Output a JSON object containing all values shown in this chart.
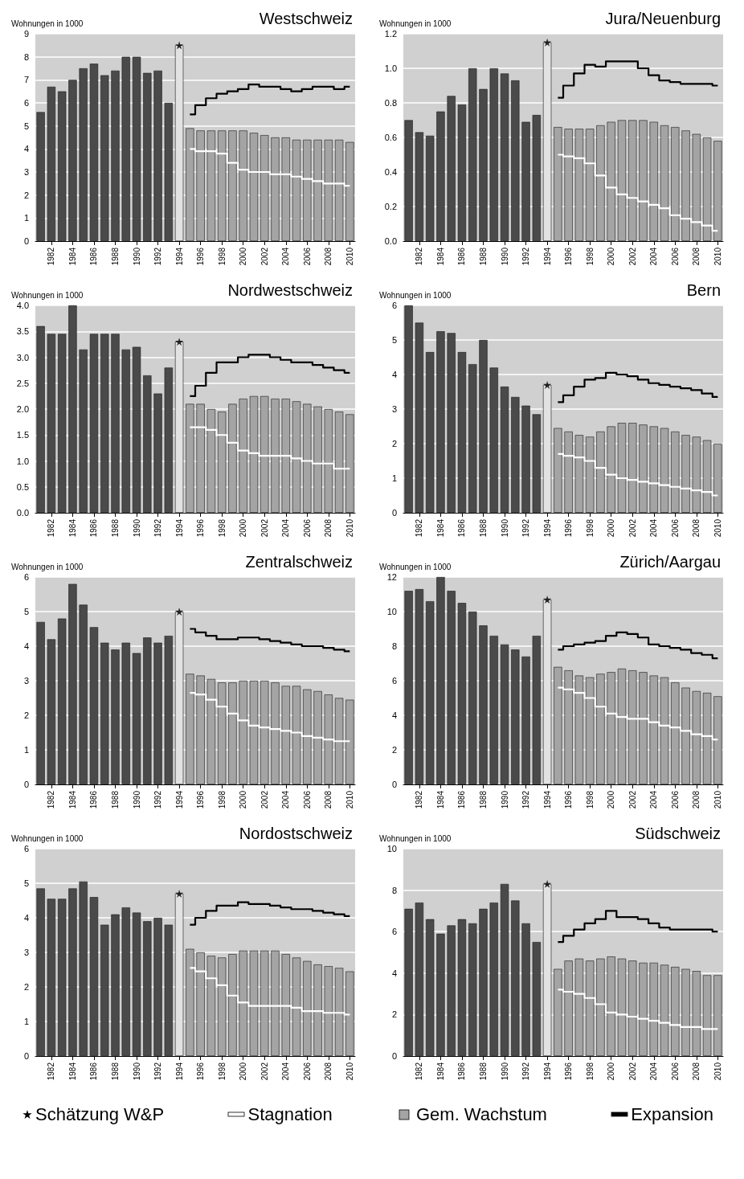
{
  "chart_data": [
    {
      "type": "bar",
      "title": "Westschweiz",
      "ylabel": "Wohnungen in 1000",
      "xlim": [
        1980.5,
        2010.5
      ],
      "xticks": [
        1982,
        1984,
        1986,
        1988,
        1990,
        1992,
        1994,
        1996,
        1998,
        2000,
        2002,
        2004,
        2006,
        2008,
        2010
      ],
      "ylim": [
        0,
        9
      ],
      "yticks": [
        0,
        1,
        2,
        3,
        4,
        5,
        6,
        7,
        8,
        9
      ],
      "grid": "y",
      "legend": "bottom",
      "series": [
        {
          "colors": [
            "#4a4a4a",
            "#4a4a4a",
            "#4a4a4a",
            "#4a4a4a",
            "#4a4a4a",
            "#4a4a4a",
            "#4a4a4a",
            "#4a4a4a",
            "#4a4a4a",
            "#4a4a4a",
            "#4a4a4a",
            "#4a4a4a",
            "#4a4a4a",
            "#e2e2e2"
          ],
          "x": [
            1981,
            1982,
            1983,
            1984,
            1985,
            1986,
            1987,
            1988,
            1989,
            1990,
            1991,
            1992,
            1993,
            1994
          ],
          "values": [
            5.6,
            6.7,
            6.5,
            7.0,
            7.5,
            7.7,
            7.2,
            7.4,
            8.0,
            8.0,
            7.3,
            7.4,
            6.0,
            8.5
          ]
        },
        {
          "type": "scatter",
          "name": "Schätzung W&P",
          "color": "#000000",
          "marker": "star",
          "x": [
            1994
          ],
          "values": [
            8.5
          ]
        },
        {
          "type": "step",
          "name": "Stagnation",
          "color": "#ffffff",
          "x": [
            1995,
            1996,
            1997,
            1998,
            1999,
            2000,
            2001,
            2002,
            2003,
            2004,
            2005,
            2006,
            2007,
            2008,
            2009,
            2010
          ],
          "values": [
            4.0,
            3.9,
            3.9,
            3.8,
            3.4,
            3.1,
            3.0,
            3.0,
            2.9,
            2.9,
            2.8,
            2.7,
            2.6,
            2.5,
            2.5,
            2.4
          ]
        },
        {
          "name": "Gem. Wachstum",
          "color": "#a4a4a4",
          "x": [
            1995,
            1996,
            1997,
            1998,
            1999,
            2000,
            2001,
            2002,
            2003,
            2004,
            2005,
            2006,
            2007,
            2008,
            2009,
            2010
          ],
          "values": [
            4.9,
            4.8,
            4.8,
            4.8,
            4.8,
            4.8,
            4.7,
            4.6,
            4.5,
            4.5,
            4.4,
            4.4,
            4.4,
            4.4,
            4.4,
            4.3
          ]
        },
        {
          "type": "step",
          "name": "Expansion",
          "color": "#000000",
          "x": [
            1995,
            1996,
            1997,
            1998,
            1999,
            2000,
            2001,
            2002,
            2003,
            2004,
            2005,
            2006,
            2007,
            2008,
            2009,
            2010
          ],
          "values": [
            5.5,
            5.9,
            6.2,
            6.4,
            6.5,
            6.6,
            6.8,
            6.7,
            6.7,
            6.6,
            6.5,
            6.6,
            6.7,
            6.7,
            6.6,
            6.7
          ]
        }
      ]
    },
    {
      "type": "bar",
      "title": "Jura/Neuenburg",
      "ylabel": "Wohnungen in 1000",
      "xlim": [
        1980.5,
        2010.5
      ],
      "xticks": [
        1982,
        1984,
        1986,
        1988,
        1990,
        1992,
        1994,
        1996,
        1998,
        2000,
        2002,
        2004,
        2006,
        2008,
        2010
      ],
      "ylim": [
        0,
        1.2
      ],
      "yticks": [
        {
          "value": 0,
          "label": "0.0"
        },
        {
          "value": 0.2,
          "label": "0.2"
        },
        {
          "value": 0.4,
          "label": "0.4"
        },
        {
          "value": 0.6,
          "label": "0.6"
        },
        {
          "value": 0.8,
          "label": "0.8"
        },
        {
          "value": 1,
          "label": "1.0"
        },
        {
          "value": 1.2,
          "label": "1.2"
        }
      ],
      "grid": "y",
      "legend": "bottom",
      "series": [
        {
          "colors": [
            "#4a4a4a",
            "#4a4a4a",
            "#4a4a4a",
            "#4a4a4a",
            "#4a4a4a",
            "#4a4a4a",
            "#4a4a4a",
            "#4a4a4a",
            "#4a4a4a",
            "#4a4a4a",
            "#4a4a4a",
            "#4a4a4a",
            "#4a4a4a",
            "#e2e2e2"
          ],
          "x": [
            1981,
            1982,
            1983,
            1984,
            1985,
            1986,
            1987,
            1988,
            1989,
            1990,
            1991,
            1992,
            1993,
            1994
          ],
          "values": [
            0.7,
            0.63,
            0.61,
            0.75,
            0.84,
            0.79,
            1.0,
            0.88,
            1.0,
            0.97,
            0.93,
            0.69,
            0.73,
            1.15
          ]
        },
        {
          "type": "scatter",
          "name": "Schätzung W&P",
          "color": "#000000",
          "marker": "star",
          "x": [
            1994
          ],
          "values": [
            1.15
          ]
        },
        {
          "type": "step",
          "name": "Stagnation",
          "color": "#ffffff",
          "x": [
            1995,
            1996,
            1997,
            1998,
            1999,
            2000,
            2001,
            2002,
            2003,
            2004,
            2005,
            2006,
            2007,
            2008,
            2009,
            2010
          ],
          "values": [
            0.5,
            0.49,
            0.48,
            0.45,
            0.38,
            0.31,
            0.27,
            0.25,
            0.23,
            0.21,
            0.19,
            0.15,
            0.13,
            0.11,
            0.09,
            0.06
          ]
        },
        {
          "name": "Gem. Wachstum",
          "color": "#a4a4a4",
          "x": [
            1995,
            1996,
            1997,
            1998,
            1999,
            2000,
            2001,
            2002,
            2003,
            2004,
            2005,
            2006,
            2007,
            2008,
            2009,
            2010
          ],
          "values": [
            0.66,
            0.65,
            0.65,
            0.65,
            0.67,
            0.69,
            0.7,
            0.7,
            0.7,
            0.69,
            0.67,
            0.66,
            0.64,
            0.62,
            0.6,
            0.58
          ]
        },
        {
          "type": "step",
          "name": "Expansion",
          "color": "#000000",
          "x": [
            1995,
            1996,
            1997,
            1998,
            1999,
            2000,
            2001,
            2002,
            2003,
            2004,
            2005,
            2006,
            2007,
            2008,
            2009,
            2010
          ],
          "values": [
            0.83,
            0.9,
            0.97,
            1.02,
            1.01,
            1.04,
            1.04,
            1.04,
            1.0,
            0.96,
            0.93,
            0.92,
            0.91,
            0.91,
            0.91,
            0.9
          ]
        }
      ]
    },
    {
      "type": "bar",
      "title": "Nordwestschweiz",
      "ylabel": "Wohnungen in 1000",
      "xlim": [
        1980.5,
        2010.5
      ],
      "xticks": [
        1982,
        1984,
        1986,
        1988,
        1990,
        1992,
        1994,
        1996,
        1998,
        2000,
        2002,
        2004,
        2006,
        2008,
        2010
      ],
      "ylim": [
        0,
        4
      ],
      "yticks": [
        {
          "value": 0,
          "label": "0.0"
        },
        {
          "value": 0.5,
          "label": "0.5"
        },
        {
          "value": 1,
          "label": "1.0"
        },
        {
          "value": 1.5,
          "label": "1.5"
        },
        {
          "value": 2,
          "label": "2.0"
        },
        {
          "value": 2.5,
          "label": "2.5"
        },
        {
          "value": 3,
          "label": "3.0"
        },
        {
          "value": 3.5,
          "label": "3.5"
        },
        {
          "value": 4,
          "label": "4.0"
        }
      ],
      "grid": "y",
      "legend": "bottom",
      "series": [
        {
          "colors": [
            "#4a4a4a",
            "#4a4a4a",
            "#4a4a4a",
            "#4a4a4a",
            "#4a4a4a",
            "#4a4a4a",
            "#4a4a4a",
            "#4a4a4a",
            "#4a4a4a",
            "#4a4a4a",
            "#4a4a4a",
            "#4a4a4a",
            "#4a4a4a",
            "#e2e2e2"
          ],
          "x": [
            1981,
            1982,
            1983,
            1984,
            1985,
            1986,
            1987,
            1988,
            1989,
            1990,
            1991,
            1992,
            1993,
            1994
          ],
          "values": [
            3.6,
            3.45,
            3.45,
            4.0,
            3.15,
            3.45,
            3.45,
            3.45,
            3.15,
            3.2,
            2.65,
            2.3,
            2.8,
            3.3
          ]
        },
        {
          "type": "scatter",
          "name": "Schätzung W&P",
          "color": "#000000",
          "marker": "star",
          "x": [
            1994
          ],
          "values": [
            3.3
          ]
        },
        {
          "type": "step",
          "name": "Stagnation",
          "color": "#ffffff",
          "x": [
            1995,
            1996,
            1997,
            1998,
            1999,
            2000,
            2001,
            2002,
            2003,
            2004,
            2005,
            2006,
            2007,
            2008,
            2009,
            2010
          ],
          "values": [
            1.65,
            1.65,
            1.6,
            1.5,
            1.35,
            1.2,
            1.15,
            1.1,
            1.1,
            1.1,
            1.05,
            1.0,
            0.95,
            0.95,
            0.85,
            0.85
          ]
        },
        {
          "name": "Gem. Wachstum",
          "color": "#a4a4a4",
          "x": [
            1995,
            1996,
            1997,
            1998,
            1999,
            2000,
            2001,
            2002,
            2003,
            2004,
            2005,
            2006,
            2007,
            2008,
            2009,
            2010
          ],
          "values": [
            2.1,
            2.1,
            2.0,
            1.95,
            2.1,
            2.2,
            2.25,
            2.25,
            2.2,
            2.2,
            2.15,
            2.1,
            2.05,
            2.0,
            1.95,
            1.9
          ]
        },
        {
          "type": "step",
          "name": "Expansion",
          "color": "#000000",
          "x": [
            1995,
            1996,
            1997,
            1998,
            1999,
            2000,
            2001,
            2002,
            2003,
            2004,
            2005,
            2006,
            2007,
            2008,
            2009,
            2010
          ],
          "values": [
            2.25,
            2.45,
            2.7,
            2.9,
            2.9,
            3.0,
            3.05,
            3.05,
            3.0,
            2.95,
            2.9,
            2.9,
            2.85,
            2.8,
            2.75,
            2.7
          ]
        }
      ]
    },
    {
      "type": "bar",
      "title": "Bern",
      "ylabel": "Wohnungen in 1000",
      "xlim": [
        1980.5,
        2010.5
      ],
      "xticks": [
        1982,
        1984,
        1986,
        1988,
        1990,
        1992,
        1994,
        1996,
        1998,
        2000,
        2002,
        2004,
        2006,
        2008,
        2010
      ],
      "ylim": [
        0,
        6
      ],
      "yticks": [
        0,
        1,
        2,
        3,
        4,
        5,
        6
      ],
      "grid": "y",
      "legend": "bottom",
      "series": [
        {
          "colors": [
            "#4a4a4a",
            "#4a4a4a",
            "#4a4a4a",
            "#4a4a4a",
            "#4a4a4a",
            "#4a4a4a",
            "#4a4a4a",
            "#4a4a4a",
            "#4a4a4a",
            "#4a4a4a",
            "#4a4a4a",
            "#4a4a4a",
            "#4a4a4a",
            "#e2e2e2"
          ],
          "x": [
            1981,
            1982,
            1983,
            1984,
            1985,
            1986,
            1987,
            1988,
            1989,
            1990,
            1991,
            1992,
            1993,
            1994
          ],
          "values": [
            6.0,
            5.5,
            4.65,
            5.25,
            5.2,
            4.65,
            4.3,
            5.0,
            4.2,
            3.65,
            3.35,
            3.1,
            2.85,
            3.7
          ]
        },
        {
          "type": "scatter",
          "name": "Schätzung W&P",
          "color": "#000000",
          "marker": "star",
          "x": [
            1994
          ],
          "values": [
            3.7
          ]
        },
        {
          "type": "step",
          "name": "Stagnation",
          "color": "#ffffff",
          "x": [
            1995,
            1996,
            1997,
            1998,
            1999,
            2000,
            2001,
            2002,
            2003,
            2004,
            2005,
            2006,
            2007,
            2008,
            2009,
            2010
          ],
          "values": [
            1.7,
            1.65,
            1.6,
            1.5,
            1.3,
            1.1,
            1.0,
            0.95,
            0.9,
            0.85,
            0.8,
            0.75,
            0.7,
            0.65,
            0.6,
            0.5
          ]
        },
        {
          "name": "Gem. Wachstum",
          "color": "#a4a4a4",
          "x": [
            1995,
            1996,
            1997,
            1998,
            1999,
            2000,
            2001,
            2002,
            2003,
            2004,
            2005,
            2006,
            2007,
            2008,
            2009,
            2010
          ],
          "values": [
            2.45,
            2.35,
            2.25,
            2.2,
            2.35,
            2.5,
            2.6,
            2.6,
            2.55,
            2.5,
            2.45,
            2.35,
            2.25,
            2.2,
            2.1,
            2.0
          ]
        },
        {
          "type": "step",
          "name": "Expansion",
          "color": "#000000",
          "x": [
            1995,
            1996,
            1997,
            1998,
            1999,
            2000,
            2001,
            2002,
            2003,
            2004,
            2005,
            2006,
            2007,
            2008,
            2009,
            2010
          ],
          "values": [
            3.2,
            3.4,
            3.65,
            3.85,
            3.9,
            4.05,
            4.0,
            3.95,
            3.85,
            3.75,
            3.7,
            3.65,
            3.6,
            3.55,
            3.45,
            3.35
          ]
        }
      ]
    },
    {
      "type": "bar",
      "title": "Zentralschweiz",
      "ylabel": "Wohnungen in 1000",
      "xlim": [
        1980.5,
        2010.5
      ],
      "xticks": [
        1982,
        1984,
        1986,
        1988,
        1990,
        1992,
        1994,
        1996,
        1998,
        2000,
        2002,
        2004,
        2006,
        2008,
        2010
      ],
      "ylim": [
        0,
        6
      ],
      "yticks": [
        0,
        1,
        2,
        3,
        4,
        5,
        6
      ],
      "grid": "y",
      "legend": "bottom",
      "series": [
        {
          "colors": [
            "#4a4a4a",
            "#4a4a4a",
            "#4a4a4a",
            "#4a4a4a",
            "#4a4a4a",
            "#4a4a4a",
            "#4a4a4a",
            "#4a4a4a",
            "#4a4a4a",
            "#4a4a4a",
            "#4a4a4a",
            "#4a4a4a",
            "#4a4a4a",
            "#e2e2e2"
          ],
          "x": [
            1981,
            1982,
            1983,
            1984,
            1985,
            1986,
            1987,
            1988,
            1989,
            1990,
            1991,
            1992,
            1993,
            1994
          ],
          "values": [
            4.7,
            4.2,
            4.8,
            5.8,
            5.2,
            4.55,
            4.1,
            3.9,
            4.1,
            3.8,
            4.25,
            4.1,
            4.3,
            5.0
          ]
        },
        {
          "type": "scatter",
          "name": "Schätzung W&P",
          "color": "#000000",
          "marker": "star",
          "x": [
            1994
          ],
          "values": [
            5.0
          ]
        },
        {
          "type": "step",
          "name": "Stagnation",
          "color": "#ffffff",
          "x": [
            1995,
            1996,
            1997,
            1998,
            1999,
            2000,
            2001,
            2002,
            2003,
            2004,
            2005,
            2006,
            2007,
            2008,
            2009,
            2010
          ],
          "values": [
            2.65,
            2.6,
            2.45,
            2.25,
            2.05,
            1.85,
            1.7,
            1.65,
            1.6,
            1.55,
            1.5,
            1.4,
            1.35,
            1.3,
            1.25,
            1.25
          ]
        },
        {
          "name": "Gem. Wachstum",
          "color": "#a4a4a4",
          "x": [
            1995,
            1996,
            1997,
            1998,
            1999,
            2000,
            2001,
            2002,
            2003,
            2004,
            2005,
            2006,
            2007,
            2008,
            2009,
            2010
          ],
          "values": [
            3.2,
            3.15,
            3.05,
            2.95,
            2.95,
            3.0,
            3.0,
            3.0,
            2.95,
            2.85,
            2.85,
            2.75,
            2.7,
            2.6,
            2.5,
            2.45
          ]
        },
        {
          "type": "step",
          "name": "Expansion",
          "color": "#000000",
          "x": [
            1995,
            1996,
            1997,
            1998,
            1999,
            2000,
            2001,
            2002,
            2003,
            2004,
            2005,
            2006,
            2007,
            2008,
            2009,
            2010
          ],
          "values": [
            4.5,
            4.4,
            4.3,
            4.2,
            4.2,
            4.25,
            4.25,
            4.2,
            4.15,
            4.1,
            4.05,
            4.0,
            4.0,
            3.95,
            3.9,
            3.85
          ]
        }
      ]
    },
    {
      "type": "bar",
      "title": "Zürich/Aargau",
      "ylabel": "Wohnungen in 1000",
      "xlim": [
        1980.5,
        2010.5
      ],
      "xticks": [
        1982,
        1984,
        1986,
        1988,
        1990,
        1992,
        1994,
        1996,
        1998,
        2000,
        2002,
        2004,
        2006,
        2008,
        2010
      ],
      "ylim": [
        0,
        12
      ],
      "yticks": [
        0,
        2,
        4,
        6,
        8,
        10,
        12
      ],
      "grid": "y",
      "legend": "bottom",
      "series": [
        {
          "colors": [
            "#4a4a4a",
            "#4a4a4a",
            "#4a4a4a",
            "#4a4a4a",
            "#4a4a4a",
            "#4a4a4a",
            "#4a4a4a",
            "#4a4a4a",
            "#4a4a4a",
            "#4a4a4a",
            "#4a4a4a",
            "#4a4a4a",
            "#4a4a4a",
            "#e2e2e2"
          ],
          "x": [
            1981,
            1982,
            1983,
            1984,
            1985,
            1986,
            1987,
            1988,
            1989,
            1990,
            1991,
            1992,
            1993,
            1994
          ],
          "values": [
            11.2,
            11.3,
            10.6,
            12.0,
            11.2,
            10.5,
            10.0,
            9.2,
            8.6,
            8.1,
            7.8,
            7.4,
            8.6,
            10.7
          ]
        },
        {
          "type": "scatter",
          "name": "Schätzung W&P",
          "color": "#000000",
          "marker": "star",
          "x": [
            1994
          ],
          "values": [
            10.7
          ]
        },
        {
          "type": "step",
          "name": "Stagnation",
          "color": "#ffffff",
          "x": [
            1995,
            1996,
            1997,
            1998,
            1999,
            2000,
            2001,
            2002,
            2003,
            2004,
            2005,
            2006,
            2007,
            2008,
            2009,
            2010
          ],
          "values": [
            5.6,
            5.5,
            5.3,
            5.0,
            4.5,
            4.1,
            3.9,
            3.8,
            3.8,
            3.6,
            3.4,
            3.3,
            3.1,
            2.9,
            2.8,
            2.6
          ]
        },
        {
          "name": "Gem. Wachstum",
          "color": "#a4a4a4",
          "x": [
            1995,
            1996,
            1997,
            1998,
            1999,
            2000,
            2001,
            2002,
            2003,
            2004,
            2005,
            2006,
            2007,
            2008,
            2009,
            2010
          ],
          "values": [
            6.8,
            6.6,
            6.3,
            6.2,
            6.4,
            6.5,
            6.7,
            6.6,
            6.5,
            6.3,
            6.2,
            5.9,
            5.6,
            5.4,
            5.3,
            5.1
          ]
        },
        {
          "type": "step",
          "name": "Expansion",
          "color": "#000000",
          "x": [
            1995,
            1996,
            1997,
            1998,
            1999,
            2000,
            2001,
            2002,
            2003,
            2004,
            2005,
            2006,
            2007,
            2008,
            2009,
            2010
          ],
          "values": [
            7.8,
            8.0,
            8.1,
            8.2,
            8.3,
            8.6,
            8.8,
            8.7,
            8.5,
            8.1,
            8.0,
            7.9,
            7.8,
            7.6,
            7.5,
            7.3
          ]
        }
      ]
    },
    {
      "type": "bar",
      "title": "Nordostschweiz",
      "ylabel": "Wohnungen in 1000",
      "xlim": [
        1980.5,
        2010.5
      ],
      "xticks": [
        1982,
        1984,
        1986,
        1988,
        1990,
        1992,
        1994,
        1996,
        1998,
        2000,
        2002,
        2004,
        2006,
        2008,
        2010
      ],
      "ylim": [
        0,
        6
      ],
      "yticks": [
        0,
        1,
        2,
        3,
        4,
        5,
        6
      ],
      "grid": "y",
      "legend": "bottom",
      "series": [
        {
          "colors": [
            "#4a4a4a",
            "#4a4a4a",
            "#4a4a4a",
            "#4a4a4a",
            "#4a4a4a",
            "#4a4a4a",
            "#4a4a4a",
            "#4a4a4a",
            "#4a4a4a",
            "#4a4a4a",
            "#4a4a4a",
            "#4a4a4a",
            "#4a4a4a",
            "#e2e2e2"
          ],
          "x": [
            1981,
            1982,
            1983,
            1984,
            1985,
            1986,
            1987,
            1988,
            1989,
            1990,
            1991,
            1992,
            1993,
            1994
          ],
          "values": [
            4.85,
            4.55,
            4.55,
            4.85,
            5.05,
            4.6,
            3.8,
            4.1,
            4.3,
            4.15,
            3.9,
            4.0,
            3.8,
            4.7
          ]
        },
        {
          "type": "scatter",
          "name": "Schätzung W&P",
          "color": "#000000",
          "marker": "star",
          "x": [
            1994
          ],
          "values": [
            4.7
          ]
        },
        {
          "type": "step",
          "name": "Stagnation",
          "color": "#ffffff",
          "x": [
            1995,
            1996,
            1997,
            1998,
            1999,
            2000,
            2001,
            2002,
            2003,
            2004,
            2005,
            2006,
            2007,
            2008,
            2009,
            2010
          ],
          "values": [
            2.55,
            2.45,
            2.25,
            2.05,
            1.75,
            1.55,
            1.45,
            1.45,
            1.45,
            1.45,
            1.4,
            1.3,
            1.3,
            1.25,
            1.25,
            1.2
          ]
        },
        {
          "name": "Gem. Wachstum",
          "color": "#a4a4a4",
          "x": [
            1995,
            1996,
            1997,
            1998,
            1999,
            2000,
            2001,
            2002,
            2003,
            2004,
            2005,
            2006,
            2007,
            2008,
            2009,
            2010
          ],
          "values": [
            3.1,
            3.0,
            2.9,
            2.85,
            2.95,
            3.05,
            3.05,
            3.05,
            3.05,
            2.95,
            2.85,
            2.75,
            2.65,
            2.6,
            2.55,
            2.45
          ]
        },
        {
          "type": "step",
          "name": "Expansion",
          "color": "#000000",
          "x": [
            1995,
            1996,
            1997,
            1998,
            1999,
            2000,
            2001,
            2002,
            2003,
            2004,
            2005,
            2006,
            2007,
            2008,
            2009,
            2010
          ],
          "values": [
            3.8,
            4.0,
            4.2,
            4.35,
            4.35,
            4.45,
            4.4,
            4.4,
            4.35,
            4.3,
            4.25,
            4.25,
            4.2,
            4.15,
            4.1,
            4.05
          ]
        }
      ]
    },
    {
      "type": "bar",
      "title": "Südschweiz",
      "ylabel": "Wohnungen in 1000",
      "xlim": [
        1980.5,
        2010.5
      ],
      "xticks": [
        1982,
        1984,
        1986,
        1988,
        1990,
        1992,
        1994,
        1996,
        1998,
        2000,
        2002,
        2004,
        2006,
        2008,
        2010
      ],
      "ylim": [
        0,
        10
      ],
      "yticks": [
        0,
        2,
        4,
        6,
        8,
        10
      ],
      "grid": "y",
      "legend": "bottom",
      "series": [
        {
          "colors": [
            "#4a4a4a",
            "#4a4a4a",
            "#4a4a4a",
            "#4a4a4a",
            "#4a4a4a",
            "#4a4a4a",
            "#4a4a4a",
            "#4a4a4a",
            "#4a4a4a",
            "#4a4a4a",
            "#4a4a4a",
            "#4a4a4a",
            "#4a4a4a",
            "#e2e2e2"
          ],
          "x": [
            1981,
            1982,
            1983,
            1984,
            1985,
            1986,
            1987,
            1988,
            1989,
            1990,
            1991,
            1992,
            1993,
            1994
          ],
          "values": [
            7.1,
            7.4,
            6.6,
            5.9,
            6.3,
            6.6,
            6.4,
            7.1,
            7.4,
            8.3,
            7.5,
            6.4,
            5.5,
            8.3
          ]
        },
        {
          "type": "scatter",
          "name": "Schätzung W&P",
          "color": "#000000",
          "marker": "star",
          "x": [
            1994
          ],
          "values": [
            8.3
          ]
        },
        {
          "type": "step",
          "name": "Stagnation",
          "color": "#ffffff",
          "x": [
            1995,
            1996,
            1997,
            1998,
            1999,
            2000,
            2001,
            2002,
            2003,
            2004,
            2005,
            2006,
            2007,
            2008,
            2009,
            2010
          ],
          "values": [
            3.2,
            3.1,
            3.0,
            2.8,
            2.5,
            2.1,
            2.0,
            1.9,
            1.8,
            1.7,
            1.6,
            1.5,
            1.4,
            1.4,
            1.3,
            1.3
          ]
        },
        {
          "name": "Gem. Wachstum",
          "color": "#a4a4a4",
          "x": [
            1995,
            1996,
            1997,
            1998,
            1999,
            2000,
            2001,
            2002,
            2003,
            2004,
            2005,
            2006,
            2007,
            2008,
            2009,
            2010
          ],
          "values": [
            4.2,
            4.6,
            4.7,
            4.6,
            4.7,
            4.8,
            4.7,
            4.6,
            4.5,
            4.5,
            4.4,
            4.3,
            4.2,
            4.1,
            3.9,
            3.9
          ]
        },
        {
          "type": "step",
          "name": "Expansion",
          "color": "#000000",
          "x": [
            1995,
            1996,
            1997,
            1998,
            1999,
            2000,
            2001,
            2002,
            2003,
            2004,
            2005,
            2006,
            2007,
            2008,
            2009,
            2010
          ],
          "values": [
            5.5,
            5.8,
            6.1,
            6.4,
            6.6,
            7.0,
            6.7,
            6.7,
            6.6,
            6.4,
            6.2,
            6.1,
            6.1,
            6.1,
            6.1,
            6.0
          ]
        }
      ]
    }
  ]
}
